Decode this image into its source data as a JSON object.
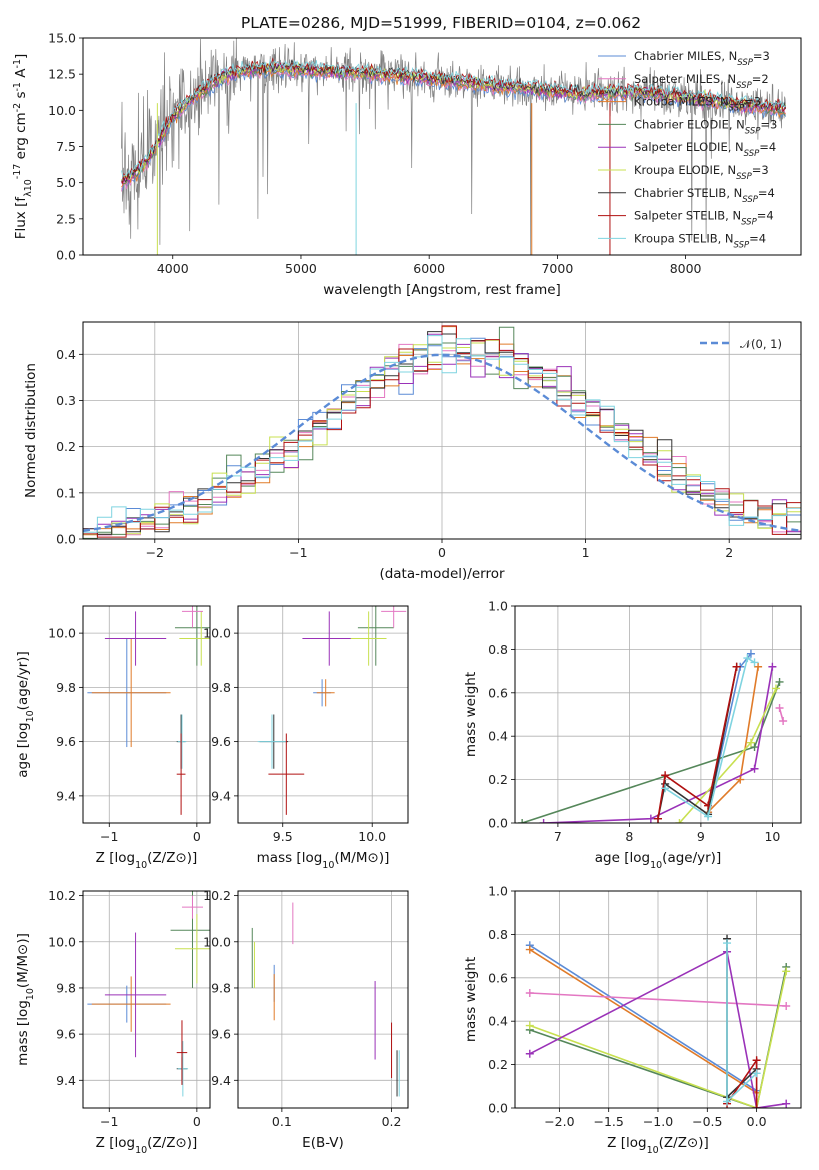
{
  "figure": {
    "title": "PLATE=0286, MJD=51999, FIBERID=0104, z=0.062"
  },
  "colors": {
    "chabrier_miles": "#5b8bd6",
    "salpeter_miles": "#e377c2",
    "kroupa_miles": "#e07b29",
    "chabrier_elodie": "#55875a",
    "salpeter_elodie": "#9a32b8",
    "kroupa_elodie": "#c8e050",
    "chabrier_stelib": "#333333",
    "salpeter_stelib": "#b01010",
    "kroupa_stelib": "#7fd4e0",
    "data_spectrum": "#808080",
    "normal_curve": "#5b8bd6"
  },
  "chart_data": [
    {
      "id": "spectrum",
      "type": "line",
      "xlabel": "wavelength [Angstrom, rest frame]",
      "ylabel": "Flux [f_λ10^-17 erg cm^-2 s^-1 A^-1]",
      "xlim": [
        3300,
        8900
      ],
      "ylim": [
        0,
        15
      ],
      "xticks": [
        4000,
        5000,
        6000,
        7000,
        8000
      ],
      "yticks": [
        0.0,
        2.5,
        5.0,
        7.5,
        10.0,
        12.5,
        15.0
      ],
      "legend_position": "right",
      "legend": [
        {
          "key": "chabrier_miles",
          "label": "Chabrier MILES, N",
          "sub": "SSP",
          "suffix": "=3"
        },
        {
          "key": "salpeter_miles",
          "label": "Salpeter MILES, N",
          "sub": "SSP",
          "suffix": "=2"
        },
        {
          "key": "kroupa_miles",
          "label": "Kroupa MILES, N",
          "sub": "SSP",
          "suffix": "=3"
        },
        {
          "key": "chabrier_elodie",
          "label": "Chabrier ELODIE, N",
          "sub": "SSP",
          "suffix": "=3"
        },
        {
          "key": "salpeter_elodie",
          "label": "Salpeter ELODIE, N",
          "sub": "SSP",
          "suffix": "=4"
        },
        {
          "key": "kroupa_elodie",
          "label": "Kroupa ELODIE, N",
          "sub": "SSP",
          "suffix": "=3"
        },
        {
          "key": "chabrier_stelib",
          "label": "Chabrier STELIB, N",
          "sub": "SSP",
          "suffix": "=4"
        },
        {
          "key": "salpeter_stelib",
          "label": "Salpeter STELIB, N",
          "sub": "SSP",
          "suffix": "=4"
        },
        {
          "key": "kroupa_stelib",
          "label": "Kroupa STELIB, N",
          "sub": "SSP",
          "suffix": "=4"
        }
      ],
      "continuum_x": [
        3600,
        3700,
        3800,
        3900,
        4000,
        4100,
        4200,
        4300,
        4400,
        4500,
        4600,
        4800,
        5000,
        5200,
        5400,
        5600,
        5800,
        6000,
        6200,
        6400,
        6600,
        6800,
        7000,
        7200,
        7400,
        7600,
        7800,
        8000,
        8200,
        8400,
        8600,
        8800
      ],
      "continuum_y": [
        5.0,
        5.6,
        6.5,
        8.0,
        9.6,
        10.4,
        11.2,
        11.8,
        12.4,
        12.6,
        12.8,
        12.9,
        12.8,
        12.7,
        12.6,
        12.5,
        12.4,
        12.2,
        12.0,
        11.8,
        11.6,
        11.5,
        11.3,
        11.1,
        11.2,
        11.3,
        11.1,
        10.9,
        10.7,
        10.4,
        10.2,
        10.0
      ],
      "data_noise_sigma": 1.2
    },
    {
      "id": "residual_hist",
      "type": "line",
      "xlabel": "(data-model)/error",
      "ylabel": "Normed distribution",
      "xlim": [
        -2.5,
        2.5
      ],
      "ylim": [
        0,
        0.47
      ],
      "xticks": [
        -2,
        -1,
        0,
        1,
        2
      ],
      "yticks": [
        0.0,
        0.1,
        0.2,
        0.3,
        0.4
      ],
      "grid": true,
      "legend_position": "top-right",
      "legend": [
        {
          "key": "normal_curve",
          "label": "𝒩(0, 1)"
        }
      ],
      "bin_width": 0.1
    },
    {
      "id": "age_vs_Z",
      "type": "scatter",
      "xlabel": "Z [log10(Z/Z⊙)]",
      "ylabel": "age  [log10(age/yr)]",
      "xlim": [
        -1.3,
        0.15
      ],
      "ylim": [
        9.3,
        10.1
      ],
      "xticks": [
        -1,
        0
      ],
      "yticks": [
        9.4,
        9.6,
        9.8,
        10.0
      ],
      "grid": true,
      "points": [
        {
          "key": "chabrier_miles",
          "x": -0.8,
          "y": 9.78,
          "xerr": 0.45,
          "yerr": 0.2
        },
        {
          "key": "kroupa_miles",
          "x": -0.75,
          "y": 9.78,
          "xerr": 0.45,
          "yerr": 0.2
        },
        {
          "key": "salpeter_elodie",
          "x": -0.7,
          "y": 9.98,
          "xerr": 0.35,
          "yerr": 0.1
        },
        {
          "key": "chabrier_elodie",
          "x": 0.0,
          "y": 10.02,
          "xerr": 0.25,
          "yerr": 0.14
        },
        {
          "key": "kroupa_elodie",
          "x": 0.05,
          "y": 9.98,
          "xerr": 0.25,
          "yerr": 0.1
        },
        {
          "key": "salpeter_miles",
          "x": -0.05,
          "y": 10.08,
          "xerr": 0.12,
          "yerr": 0.06
        },
        {
          "key": "chabrier_stelib",
          "x": -0.18,
          "y": 9.6,
          "xerr": 0.05,
          "yerr": 0.1
        },
        {
          "key": "kroupa_stelib",
          "x": -0.17,
          "y": 9.6,
          "xerr": 0.05,
          "yerr": 0.1
        },
        {
          "key": "salpeter_stelib",
          "x": -0.18,
          "y": 9.48,
          "xerr": 0.05,
          "yerr": 0.15
        }
      ]
    },
    {
      "id": "age_vs_mass",
      "type": "scatter",
      "xlabel": "mass [log10(M/M⊙)]",
      "ylabel": "",
      "xlim": [
        9.25,
        10.2
      ],
      "ylim": [
        9.3,
        10.1
      ],
      "xticks": [
        9.5,
        10.0
      ],
      "yticks": [
        9.4,
        9.6,
        9.8,
        10.0
      ],
      "grid": true,
      "points": [
        {
          "key": "chabrier_miles",
          "x": 9.72,
          "y": 9.78,
          "xerr": 0.05,
          "yerr": 0.05
        },
        {
          "key": "kroupa_miles",
          "x": 9.74,
          "y": 9.78,
          "xerr": 0.05,
          "yerr": 0.05
        },
        {
          "key": "salpeter_elodie",
          "x": 9.76,
          "y": 9.98,
          "xerr": 0.15,
          "yerr": 0.1
        },
        {
          "key": "chabrier_elodie",
          "x": 10.02,
          "y": 10.02,
          "xerr": 0.1,
          "yerr": 0.14
        },
        {
          "key": "kroupa_elodie",
          "x": 9.98,
          "y": 9.98,
          "xerr": 0.1,
          "yerr": 0.1
        },
        {
          "key": "salpeter_miles",
          "x": 10.12,
          "y": 10.08,
          "xerr": 0.07,
          "yerr": 0.06
        },
        {
          "key": "chabrier_stelib",
          "x": 9.45,
          "y": 9.6,
          "xerr": 0.08,
          "yerr": 0.1
        },
        {
          "key": "kroupa_stelib",
          "x": 9.44,
          "y": 9.6,
          "xerr": 0.08,
          "yerr": 0.1
        },
        {
          "key": "salpeter_stelib",
          "x": 9.52,
          "y": 9.48,
          "xerr": 0.1,
          "yerr": 0.15
        }
      ]
    },
    {
      "id": "weight_vs_age",
      "type": "line",
      "xlabel": "age  [log10(age/yr)]",
      "ylabel": "mass weight",
      "xlim": [
        6.4,
        10.4
      ],
      "ylim": [
        0,
        1
      ],
      "xticks": [
        7,
        8,
        9,
        10
      ],
      "yticks": [
        0.0,
        0.2,
        0.4,
        0.6,
        0.8,
        1.0
      ],
      "grid": true,
      "series": [
        {
          "key": "chabrier_miles",
          "x": [
            9.1,
            9.55,
            9.7
          ],
          "y": [
            0.05,
            0.72,
            0.78
          ]
        },
        {
          "key": "salpeter_miles",
          "x": [
            10.15,
            10.1
          ],
          "y": [
            0.47,
            0.53
          ]
        },
        {
          "key": "kroupa_miles",
          "x": [
            9.1,
            9.55,
            9.8
          ],
          "y": [
            0.05,
            0.2,
            0.72
          ]
        },
        {
          "key": "chabrier_elodie",
          "x": [
            6.5,
            9.75,
            10.1
          ],
          "y": [
            0.0,
            0.35,
            0.65
          ]
        },
        {
          "key": "salpeter_elodie",
          "x": [
            6.8,
            8.3,
            9.75,
            10.0
          ],
          "y": [
            0.0,
            0.02,
            0.25,
            0.72
          ]
        },
        {
          "key": "kroupa_elodie",
          "x": [
            8.7,
            9.7,
            10.05
          ],
          "y": [
            0.0,
            0.37,
            0.62
          ]
        },
        {
          "key": "chabrier_stelib",
          "x": [
            8.4,
            8.5,
            9.1,
            9.5
          ],
          "y": [
            0.02,
            0.18,
            0.04,
            0.72
          ]
        },
        {
          "key": "salpeter_stelib",
          "x": [
            8.4,
            8.5,
            9.1,
            9.5
          ],
          "y": [
            0.02,
            0.22,
            0.08,
            0.72
          ]
        },
        {
          "key": "kroupa_stelib",
          "x": [
            8.5,
            9.1,
            9.65,
            9.75
          ],
          "y": [
            0.16,
            0.03,
            0.76,
            0.74
          ]
        }
      ]
    },
    {
      "id": "mass_vs_Z",
      "type": "scatter",
      "xlabel": "Z [log10(Z/Z⊙)]",
      "ylabel": "mass [log10(M/M⊙)]",
      "xlim": [
        -1.3,
        0.15
      ],
      "ylim": [
        9.28,
        10.22
      ],
      "xticks": [
        -1,
        0
      ],
      "yticks": [
        9.4,
        9.6,
        9.8,
        10.0,
        10.2
      ],
      "grid": true,
      "points": [
        {
          "key": "chabrier_miles",
          "x": -0.8,
          "y": 9.73,
          "xerr": 0.45,
          "yerr": 0.08
        },
        {
          "key": "kroupa_miles",
          "x": -0.75,
          "y": 9.73,
          "xerr": 0.45,
          "yerr": 0.12
        },
        {
          "key": "salpeter_elodie",
          "x": -0.7,
          "y": 9.77,
          "xerr": 0.35,
          "yerr": 0.27
        },
        {
          "key": "chabrier_elodie",
          "x": -0.05,
          "y": 10.05,
          "xerr": 0.25,
          "yerr": 0.25
        },
        {
          "key": "kroupa_elodie",
          "x": 0.0,
          "y": 9.97,
          "xerr": 0.25,
          "yerr": 0.15
        },
        {
          "key": "salpeter_miles",
          "x": -0.05,
          "y": 10.15,
          "xerr": 0.12,
          "yerr": 0.05
        },
        {
          "key": "chabrier_stelib",
          "x": -0.17,
          "y": 9.45,
          "xerr": 0.06,
          "yerr": 0.05
        },
        {
          "key": "kroupa_stelib",
          "x": -0.16,
          "y": 9.45,
          "xerr": 0.06,
          "yerr": 0.12
        },
        {
          "key": "salpeter_stelib",
          "x": -0.17,
          "y": 9.52,
          "xerr": 0.06,
          "yerr": 0.14
        }
      ]
    },
    {
      "id": "mass_vs_ebv",
      "type": "scatter",
      "xlabel": "E(B-V)",
      "ylabel": "",
      "xlim": [
        0.06,
        0.215
      ],
      "ylim": [
        9.28,
        10.22
      ],
      "xticks": [
        0.1,
        0.2
      ],
      "yticks": [
        9.4,
        9.6,
        9.8,
        10.0,
        10.2
      ],
      "grid": true,
      "points": [
        {
          "key": "chabrier_elodie",
          "x": 0.073,
          "y": 9.93,
          "xerr": 0,
          "yerr": 0.13
        },
        {
          "key": "kroupa_elodie",
          "x": 0.075,
          "y": 9.9,
          "xerr": 0,
          "yerr": 0.1
        },
        {
          "key": "salpeter_miles",
          "x": 0.11,
          "y": 10.08,
          "xerr": 0,
          "yerr": 0.09
        },
        {
          "key": "chabrier_miles",
          "x": 0.093,
          "y": 9.82,
          "xerr": 0,
          "yerr": 0.08
        },
        {
          "key": "kroupa_miles",
          "x": 0.093,
          "y": 9.76,
          "xerr": 0,
          "yerr": 0.1
        },
        {
          "key": "salpeter_elodie",
          "x": 0.185,
          "y": 9.66,
          "xerr": 0,
          "yerr": 0.17
        },
        {
          "key": "salpeter_stelib",
          "x": 0.2,
          "y": 9.53,
          "xerr": 0,
          "yerr": 0.12
        },
        {
          "key": "chabrier_stelib",
          "x": 0.205,
          "y": 9.43,
          "xerr": 0,
          "yerr": 0.1
        },
        {
          "key": "kroupa_stelib",
          "x": 0.207,
          "y": 9.43,
          "xerr": 0,
          "yerr": 0.1
        }
      ]
    },
    {
      "id": "weight_vs_Z",
      "type": "line",
      "xlabel": "Z [log10(Z/Z⊙)]",
      "ylabel": "mass weight",
      "xlim": [
        -2.45,
        0.45
      ],
      "ylim": [
        0,
        1
      ],
      "xticks": [
        -2.0,
        -1.5,
        -1.0,
        -0.5,
        0.0
      ],
      "yticks": [
        0.0,
        0.2,
        0.4,
        0.6,
        0.8,
        1.0
      ],
      "grid": true,
      "series": [
        {
          "key": "chabrier_miles",
          "x": [
            -2.3,
            0.0
          ],
          "y": [
            0.75,
            0.08
          ]
        },
        {
          "key": "kroupa_miles",
          "x": [
            -2.3,
            0.0
          ],
          "y": [
            0.73,
            0.07
          ]
        },
        {
          "key": "salpeter_miles",
          "x": [
            -2.3,
            0.3
          ],
          "y": [
            0.53,
            0.47
          ]
        },
        {
          "key": "chabrier_elodie",
          "x": [
            -2.3,
            0.0,
            0.3
          ],
          "y": [
            0.36,
            0.0,
            0.65
          ]
        },
        {
          "key": "kroupa_elodie",
          "x": [
            -2.3,
            0.0,
            0.3
          ],
          "y": [
            0.38,
            0.0,
            0.63
          ]
        },
        {
          "key": "salpeter_elodie",
          "x": [
            -2.3,
            -0.3,
            0.0,
            0.3
          ],
          "y": [
            0.25,
            0.72,
            0.0,
            0.02
          ]
        },
        {
          "key": "chabrier_stelib",
          "x": [
            -0.3,
            -0.3,
            0.0
          ],
          "y": [
            0.78,
            0.05,
            0.18
          ]
        },
        {
          "key": "salpeter_stelib",
          "x": [
            -0.3,
            0.0,
            0.0
          ],
          "y": [
            0.02,
            0.22,
            0.0
          ]
        },
        {
          "key": "kroupa_stelib",
          "x": [
            -0.3,
            -0.3,
            0.0
          ],
          "y": [
            0.76,
            0.03,
            0.16
          ]
        }
      ]
    }
  ]
}
